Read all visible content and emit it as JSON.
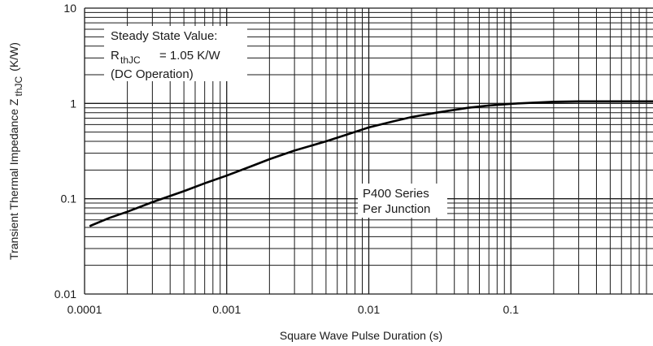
{
  "chart_data": {
    "type": "line",
    "xlabel": "Square Wave Pulse Duration (s)",
    "ylabel": "Transient Thermal Impedance Z",
    "ylabel_sub": "thJC",
    "ylabel_unit": "(K/W)",
    "x_scale": "log",
    "y_scale": "log",
    "xlim": [
      0.0001,
      1
    ],
    "ylim": [
      0.01,
      10
    ],
    "x_ticks": [
      0.0001,
      0.001,
      0.01,
      0.1
    ],
    "x_tick_labels": [
      "0.0001",
      "0.001",
      "0.01",
      "0.1"
    ],
    "y_ticks": [
      0.01,
      0.1,
      1,
      10
    ],
    "y_tick_labels": [
      "0.01",
      "0.1",
      "1",
      "10"
    ],
    "grid": true,
    "series": [
      {
        "x": [
          0.00011,
          0.00015,
          0.0002,
          0.0003,
          0.0005,
          0.0007,
          0.001,
          0.0015,
          0.002,
          0.003,
          0.005,
          0.007,
          0.01,
          0.015,
          0.02,
          0.03,
          0.05,
          0.07,
          0.1,
          0.15,
          0.2,
          0.3,
          0.5,
          1
        ],
        "y": [
          0.052,
          0.063,
          0.073,
          0.092,
          0.12,
          0.145,
          0.175,
          0.22,
          0.26,
          0.32,
          0.4,
          0.47,
          0.56,
          0.65,
          0.72,
          0.8,
          0.9,
          0.95,
          0.99,
          1.02,
          1.04,
          1.05,
          1.05,
          1.05
        ]
      }
    ],
    "annotations": {
      "steady_line1": "Steady State Value:",
      "steady_R": "R",
      "steady_sub": "thJC",
      "steady_value": "= 1.05 K/W",
      "steady_line3": "(DC Operation)",
      "series_line1": "P400 Series",
      "series_line2": "Per Junction"
    }
  }
}
